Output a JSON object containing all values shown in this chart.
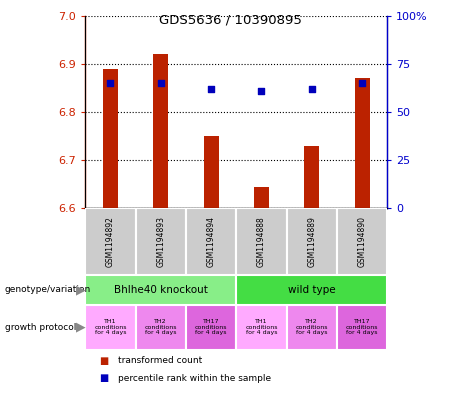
{
  "title": "GDS5636 / 10390895",
  "samples": [
    "GSM1194892",
    "GSM1194893",
    "GSM1194894",
    "GSM1194888",
    "GSM1194889",
    "GSM1194890"
  ],
  "transformed_counts": [
    6.89,
    6.92,
    6.75,
    6.645,
    6.73,
    6.87
  ],
  "percentile_ranks": [
    65,
    65,
    62,
    61,
    62,
    65
  ],
  "ylim_left": [
    6.6,
    7.0
  ],
  "ylim_right": [
    0,
    100
  ],
  "yticks_left": [
    6.6,
    6.7,
    6.8,
    6.9,
    7.0
  ],
  "yticks_right": [
    0,
    25,
    50,
    75,
    100
  ],
  "bar_color": "#bb2200",
  "dot_color": "#0000bb",
  "bar_bottom": 6.6,
  "genotype_groups": [
    {
      "label": "Bhlhe40 knockout",
      "start": 0,
      "end": 3,
      "color": "#88ee88"
    },
    {
      "label": "wild type",
      "start": 3,
      "end": 6,
      "color": "#44dd44"
    }
  ],
  "growth_protocol_colors": [
    "#ffaaff",
    "#ee88ee",
    "#dd66dd",
    "#ffaaff",
    "#ee88ee",
    "#dd66dd"
  ],
  "growth_protocol_labels": [
    "TH1\nconditions\nfor 4 days",
    "TH2\nconditions\nfor 4 days",
    "TH17\nconditions\nfor 4 days",
    "TH1\nconditions\nfor 4 days",
    "TH2\nconditions\nfor 4 days",
    "TH17\nconditions\nfor 4 days"
  ],
  "left_axis_color": "#cc2200",
  "right_axis_color": "#0000cc",
  "sample_bg_color": "#cccccc",
  "bar_width": 0.3
}
